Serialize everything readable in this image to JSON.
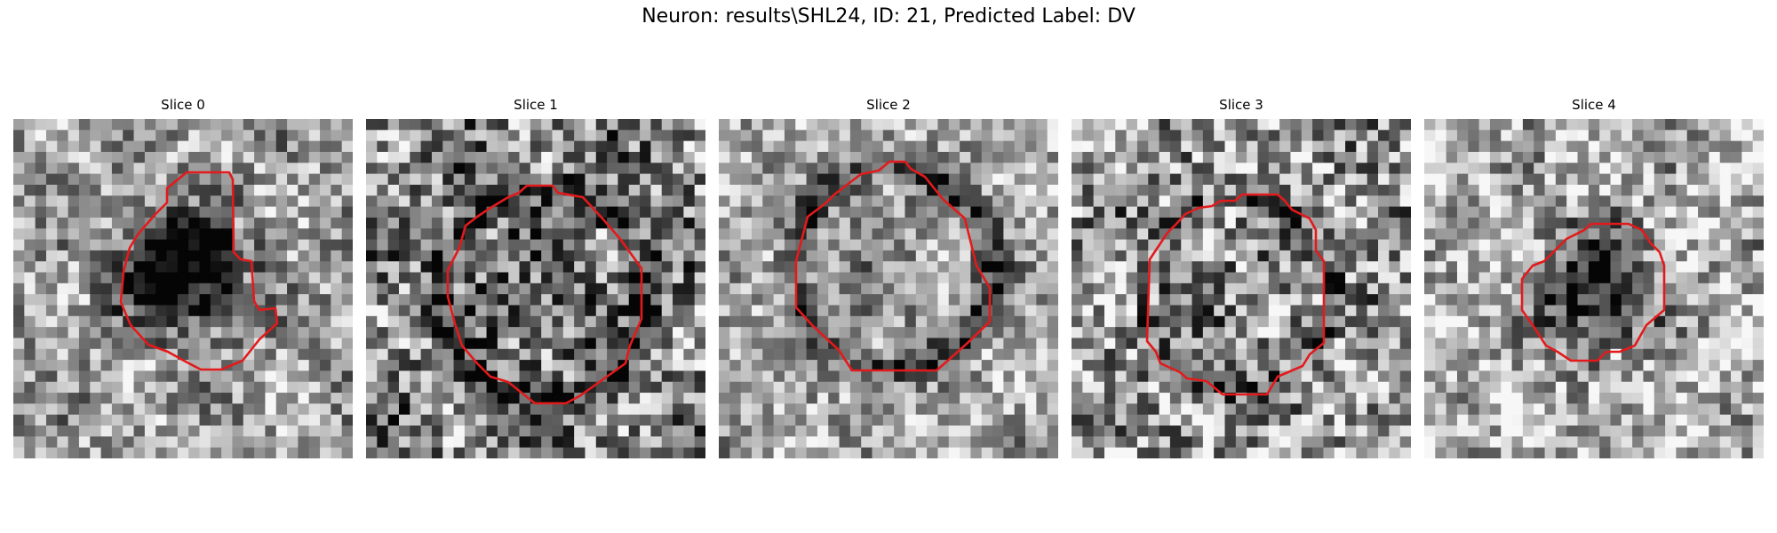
{
  "figure": {
    "title": "Neuron: results\\SHL24, ID: 21, Predicted Label: DV"
  },
  "slices": [
    {
      "title": "Slice 0"
    },
    {
      "title": "Slice 1"
    },
    {
      "title": "Slice 2"
    },
    {
      "title": "Slice 3"
    },
    {
      "title": "Slice 4"
    }
  ],
  "colors": {
    "contour": "#e31a1c",
    "background": "#ffffff"
  }
}
